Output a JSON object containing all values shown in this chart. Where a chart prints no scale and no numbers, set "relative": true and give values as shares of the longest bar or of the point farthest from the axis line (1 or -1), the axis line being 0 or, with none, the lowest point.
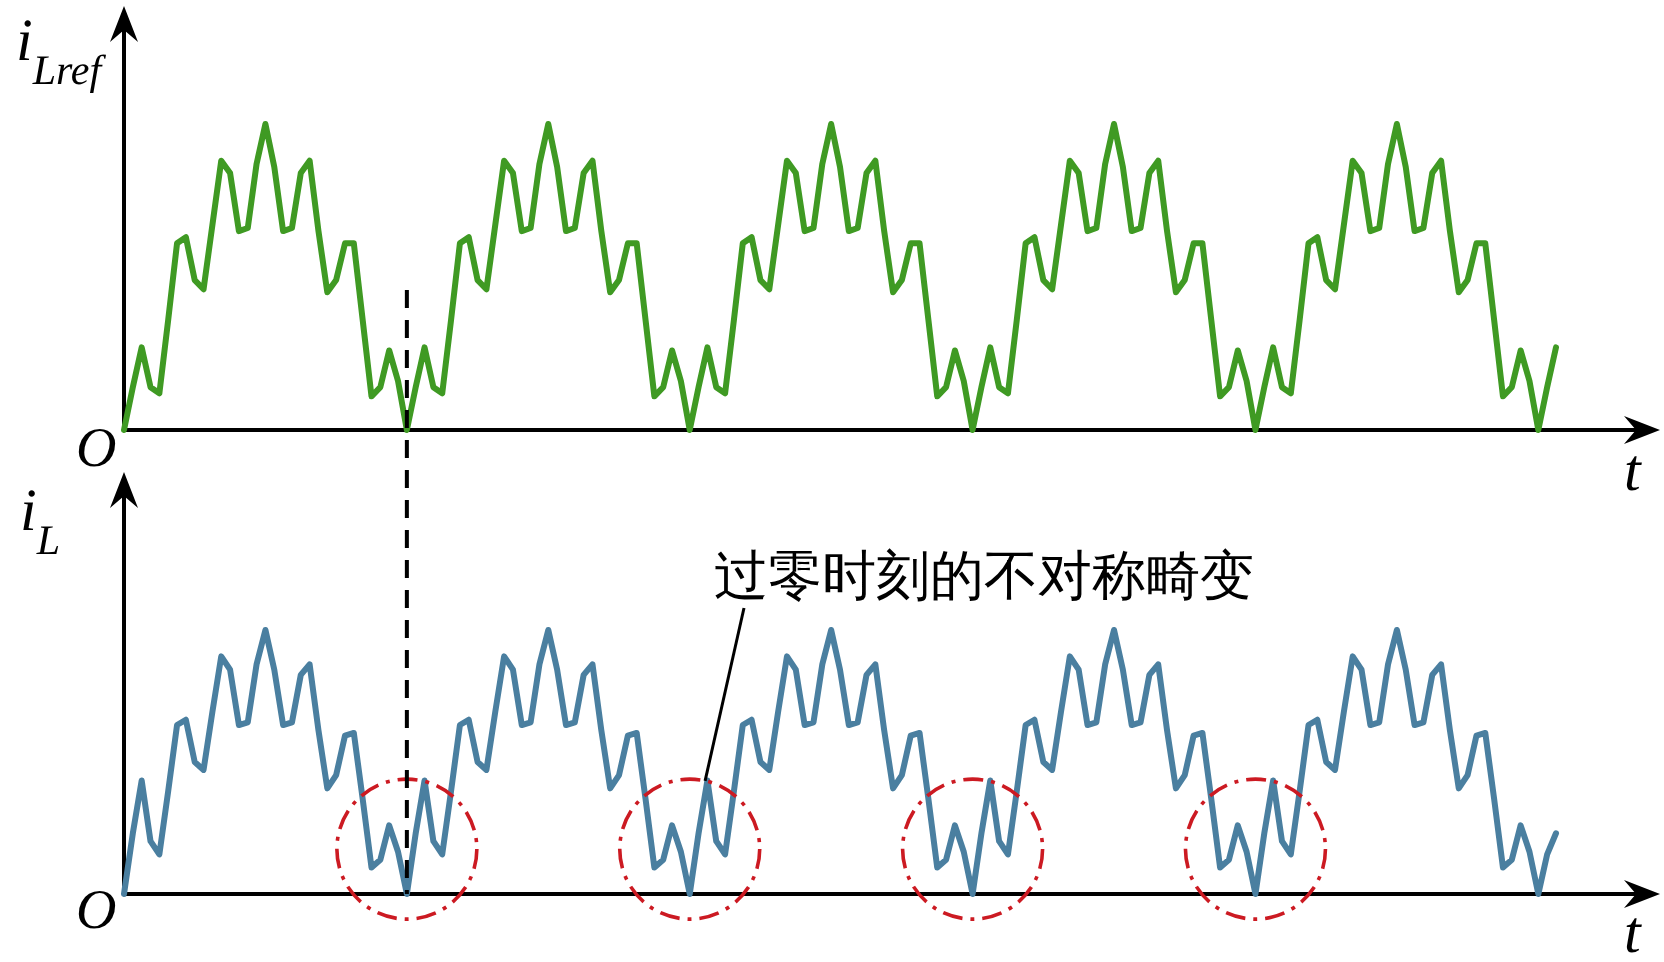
{
  "chart_data": [
    {
      "type": "line",
      "ylabel": "i$_{Lref}$",
      "xlabel": "t",
      "relative": true,
      "marker": "none",
      "line_style": "solid",
      "annotations": [
        "O"
      ],
      "categories": [
        null,
        null,
        null,
        null,
        null,
        null,
        null,
        null,
        null,
        null,
        null,
        null,
        null,
        null,
        null,
        null,
        null,
        null,
        null,
        null,
        null,
        null,
        null,
        null,
        null,
        null,
        null,
        null,
        null,
        null,
        null,
        null,
        null,
        null,
        null,
        null,
        null,
        null,
        null,
        null,
        null,
        null,
        null,
        null,
        null,
        null,
        null,
        null,
        null,
        null,
        null,
        null,
        null,
        null,
        null,
        null,
        null,
        null,
        null,
        null,
        null,
        null,
        null,
        null,
        null,
        null,
        null,
        null,
        null,
        null,
        null,
        null,
        null,
        null,
        null,
        null,
        null,
        null,
        null,
        null,
        null,
        null,
        null,
        null,
        null,
        null,
        null,
        null,
        null,
        null,
        null,
        null,
        null,
        null,
        null,
        null,
        null,
        null,
        null,
        null,
        null,
        null,
        null,
        null,
        null,
        null,
        null,
        null,
        null,
        null,
        null,
        null,
        null,
        null,
        null,
        null,
        null,
        null,
        null,
        null,
        null,
        null,
        null,
        null,
        null,
        null,
        null,
        null,
        null,
        null,
        null,
        null,
        null,
        null,
        null,
        null,
        null,
        null,
        null,
        null,
        null,
        null,
        null,
        null,
        null,
        null,
        null,
        null,
        null,
        null,
        null,
        null,
        null,
        null,
        null,
        null,
        null,
        null,
        null,
        null,
        null,
        null,
        null
      ],
      "series": [
        {
          "color": "#3f9a23",
          "values": [
            0,
            0.14,
            0.27,
            0.14,
            0.12,
            0.36,
            0.61,
            0.63,
            0.49,
            0.46,
            0.67,
            0.88,
            0.84,
            0.65,
            0.66,
            0.87,
            1,
            0.86,
            0.65,
            0.66,
            0.84,
            0.88,
            0.65,
            0.45,
            0.49,
            0.61,
            0.61,
            0.36,
            0.11,
            0.14,
            0.26,
            0.16,
            0,
            0.14,
            0.27,
            0.14,
            0.12,
            0.36,
            0.61,
            0.63,
            0.49,
            0.46,
            0.67,
            0.88,
            0.84,
            0.65,
            0.66,
            0.87,
            1,
            0.86,
            0.65,
            0.66,
            0.84,
            0.88,
            0.65,
            0.45,
            0.49,
            0.61,
            0.61,
            0.36,
            0.11,
            0.14,
            0.26,
            0.16,
            0,
            0.14,
            0.27,
            0.14,
            0.12,
            0.36,
            0.61,
            0.63,
            0.49,
            0.46,
            0.67,
            0.88,
            0.84,
            0.65,
            0.66,
            0.87,
            1,
            0.86,
            0.65,
            0.66,
            0.84,
            0.88,
            0.65,
            0.45,
            0.49,
            0.61,
            0.61,
            0.36,
            0.11,
            0.14,
            0.26,
            0.16,
            0,
            0.14,
            0.27,
            0.14,
            0.12,
            0.36,
            0.61,
            0.63,
            0.49,
            0.46,
            0.67,
            0.88,
            0.84,
            0.65,
            0.66,
            0.87,
            1,
            0.86,
            0.65,
            0.66,
            0.84,
            0.88,
            0.65,
            0.45,
            0.49,
            0.61,
            0.61,
            0.36,
            0.11,
            0.14,
            0.26,
            0.16,
            0,
            0.14,
            0.27,
            0.14,
            0.12,
            0.36,
            0.61,
            0.63,
            0.49,
            0.46,
            0.67,
            0.88,
            0.84,
            0.65,
            0.66,
            0.87,
            1,
            0.86,
            0.65,
            0.66,
            0.84,
            0.88,
            0.65,
            0.45,
            0.49,
            0.61,
            0.61,
            0.36,
            0.11,
            0.14,
            0.26,
            0.16,
            0,
            0.14,
            0.27
          ]
        }
      ]
    },
    {
      "type": "line",
      "ylabel": "i$_{L}$",
      "xlabel": "t",
      "relative": true,
      "marker": "none",
      "line_style": "solid",
      "annotations": [
        "O",
        "过零时刻的不对称畸变"
      ],
      "categories": [
        null,
        null,
        null,
        null,
        null,
        null,
        null,
        null,
        null,
        null,
        null,
        null,
        null,
        null,
        null,
        null,
        null,
        null,
        null,
        null,
        null,
        null,
        null,
        null,
        null,
        null,
        null,
        null,
        null,
        null,
        null,
        null,
        null,
        null,
        null,
        null,
        null,
        null,
        null,
        null,
        null,
        null,
        null,
        null,
        null,
        null,
        null,
        null,
        null,
        null,
        null,
        null,
        null,
        null,
        null,
        null,
        null,
        null,
        null,
        null,
        null,
        null,
        null,
        null,
        null,
        null,
        null,
        null,
        null,
        null,
        null,
        null,
        null,
        null,
        null,
        null,
        null,
        null,
        null,
        null,
        null,
        null,
        null,
        null,
        null,
        null,
        null,
        null,
        null,
        null,
        null,
        null,
        null,
        null,
        null,
        null,
        null,
        null,
        null,
        null,
        null,
        null,
        null,
        null,
        null,
        null,
        null,
        null,
        null,
        null,
        null,
        null,
        null,
        null,
        null,
        null,
        null,
        null,
        null,
        null,
        null,
        null,
        null,
        null,
        null,
        null,
        null,
        null,
        null,
        null,
        null,
        null,
        null,
        null,
        null,
        null,
        null,
        null,
        null,
        null,
        null,
        null,
        null,
        null,
        null,
        null,
        null,
        null,
        null,
        null,
        null,
        null,
        null,
        null,
        null,
        null,
        null,
        null,
        null,
        null,
        null,
        null,
        null
      ],
      "series": [
        {
          "color": "#4a7fa0",
          "values": [
            0,
            0.23,
            0.43,
            0.2,
            0.15,
            0.39,
            0.64,
            0.66,
            0.5,
            0.47,
            0.69,
            0.9,
            0.85,
            0.64,
            0.65,
            0.87,
            1,
            0.85,
            0.64,
            0.65,
            0.83,
            0.87,
            0.62,
            0.4,
            0.45,
            0.6,
            0.61,
            0.36,
            0.1,
            0.13,
            0.26,
            0.16,
            0,
            0.23,
            0.43,
            0.2,
            0.15,
            0.39,
            0.64,
            0.66,
            0.5,
            0.47,
            0.69,
            0.9,
            0.85,
            0.64,
            0.65,
            0.87,
            1,
            0.85,
            0.64,
            0.65,
            0.83,
            0.87,
            0.62,
            0.4,
            0.45,
            0.6,
            0.61,
            0.36,
            0.1,
            0.13,
            0.26,
            0.16,
            0,
            0.23,
            0.43,
            0.2,
            0.15,
            0.39,
            0.64,
            0.66,
            0.5,
            0.47,
            0.69,
            0.9,
            0.85,
            0.64,
            0.65,
            0.87,
            1,
            0.85,
            0.64,
            0.65,
            0.83,
            0.87,
            0.62,
            0.4,
            0.45,
            0.6,
            0.61,
            0.36,
            0.1,
            0.13,
            0.26,
            0.16,
            0,
            0.23,
            0.43,
            0.2,
            0.15,
            0.39,
            0.64,
            0.66,
            0.5,
            0.47,
            0.69,
            0.9,
            0.85,
            0.64,
            0.65,
            0.87,
            1,
            0.85,
            0.64,
            0.65,
            0.83,
            0.87,
            0.62,
            0.4,
            0.45,
            0.6,
            0.61,
            0.36,
            0.1,
            0.13,
            0.26,
            0.16,
            0,
            0.23,
            0.43,
            0.2,
            0.15,
            0.39,
            0.64,
            0.66,
            0.5,
            0.47,
            0.69,
            0.9,
            0.85,
            0.64,
            0.65,
            0.87,
            1,
            0.85,
            0.64,
            0.65,
            0.83,
            0.87,
            0.62,
            0.4,
            0.45,
            0.6,
            0.61,
            0.36,
            0.1,
            0.13,
            0.26,
            0.16,
            0,
            0.15,
            0.23
          ]
        }
      ]
    }
  ]
}
